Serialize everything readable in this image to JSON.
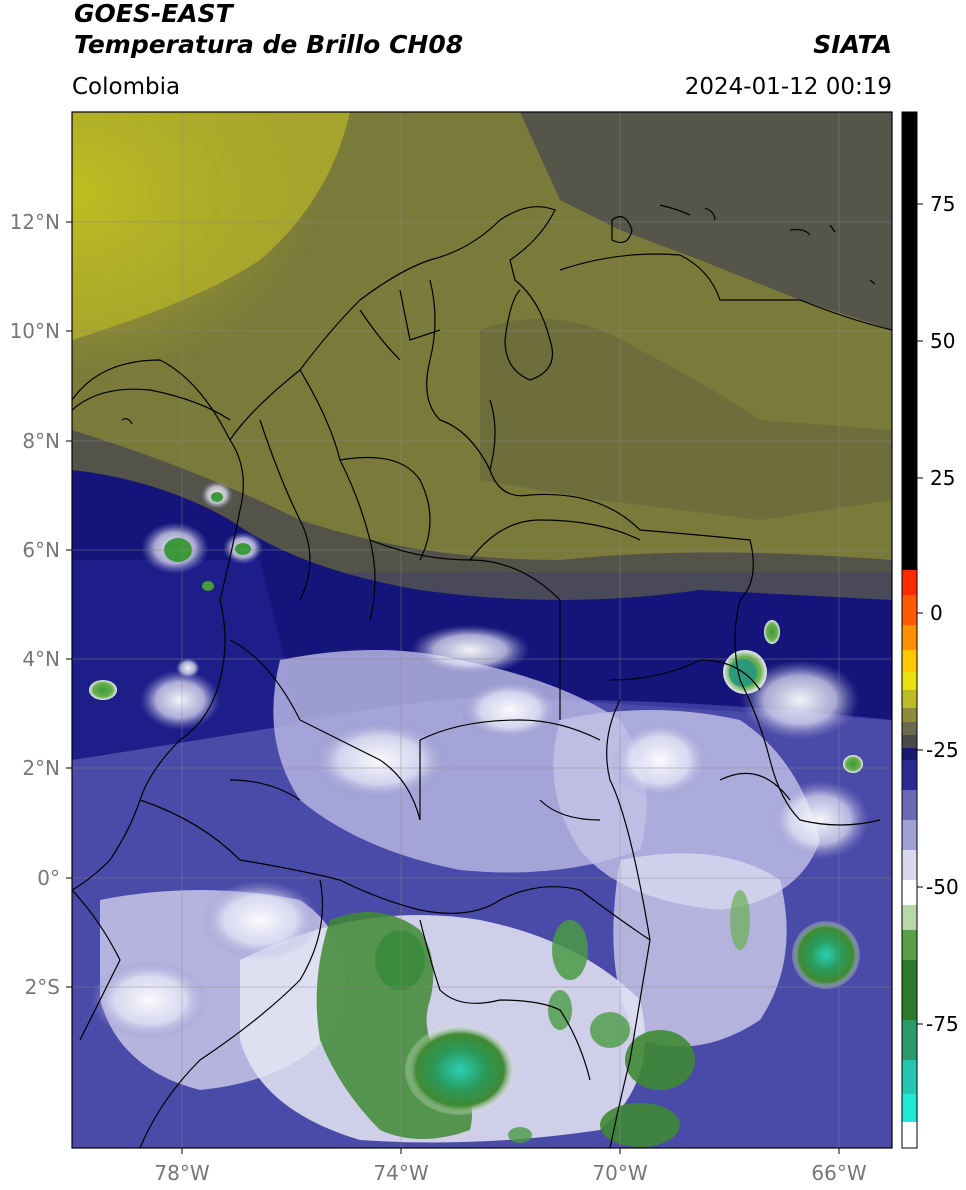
{
  "header": {
    "satellite": "GOES-EAST",
    "product": "Temperatura de Brillo CH08",
    "organization": "SIATA",
    "region": "Colombia",
    "timestamp": "2024-01-12 00:19"
  },
  "map": {
    "lat_ticks": [
      "12°N",
      "10°N",
      "8°N",
      "6°N",
      "4°N",
      "2°N",
      "0°",
      "2°S"
    ],
    "lon_ticks": [
      "78°W",
      "74°W",
      "70°W",
      "66°W"
    ]
  },
  "colorbar": {
    "ticks": [
      "75",
      "50",
      "25",
      "0",
      "-25",
      "-50",
      "-75"
    ],
    "units_hint": "brightness temperature (°C)",
    "stops": [
      {
        "color": "#ffffff"
      },
      {
        "color": "#1ee8d6"
      },
      {
        "color": "#2ab08a"
      },
      {
        "color": "#2a7a2a"
      },
      {
        "color": "#6aaa4a"
      },
      {
        "color": "#d8ecd0"
      },
      {
        "color": "#ffffff"
      },
      {
        "color": "#c8c8ea"
      },
      {
        "color": "#6a6ab0"
      },
      {
        "color": "#1a1a88"
      },
      {
        "color": "#101060"
      },
      {
        "color": "#4a4a4a"
      },
      {
        "color": "#8c8c3c"
      },
      {
        "color": "#e8e010"
      },
      {
        "color": "#ff9000"
      },
      {
        "color": "#ff2a00"
      },
      {
        "color": "#000000"
      }
    ]
  }
}
